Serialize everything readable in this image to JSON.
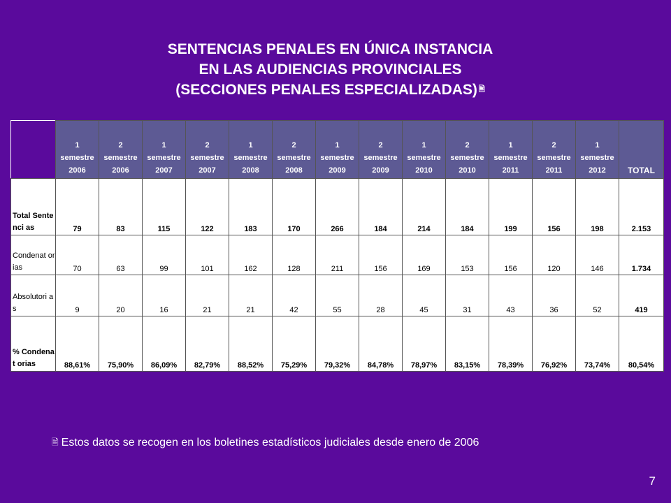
{
  "title": {
    "line1": "SENTENCIAS PENALES EN ÚNICA INSTANCIA",
    "line2": "EN LAS AUDIENCIAS PROVINCIALES",
    "line3": "(SECCIONES PENALES ESPECIALIZADAS)",
    "icon": "document-icon"
  },
  "table": {
    "headers": [
      {
        "num": "1",
        "word": "semestre",
        "year": "2006"
      },
      {
        "num": "2",
        "word": "semestre",
        "year": "2006"
      },
      {
        "num": "1",
        "word": "semestre",
        "year": "2007"
      },
      {
        "num": "2",
        "word": "semestre",
        "year": "2007"
      },
      {
        "num": "1",
        "word": "semestre",
        "year": "2008"
      },
      {
        "num": "2",
        "word": "semestre",
        "year": "2008"
      },
      {
        "num": "1",
        "word": "semestre",
        "year": "2009"
      },
      {
        "num": "2",
        "word": "semestre",
        "year": "2009"
      },
      {
        "num": "1",
        "word": "semestre",
        "year": "2010"
      },
      {
        "num": "2",
        "word": "semestre",
        "year": "2010"
      },
      {
        "num": "1",
        "word": "semestre",
        "year": "2011"
      },
      {
        "num": "2",
        "word": "semestre",
        "year": "2011"
      },
      {
        "num": "1",
        "word": "semestre",
        "year": "2012"
      }
    ],
    "total_header": "TOTAL",
    "rows": [
      {
        "label": "Total Sentenci as",
        "values": [
          "79",
          "83",
          "115",
          "122",
          "183",
          "170",
          "266",
          "184",
          "214",
          "184",
          "199",
          "156",
          "198"
        ],
        "total": "2.153"
      },
      {
        "label": "Condenat orias",
        "values": [
          "70",
          "63",
          "99",
          "101",
          "162",
          "128",
          "211",
          "156",
          "169",
          "153",
          "156",
          "120",
          "146"
        ],
        "total": "1.734"
      },
      {
        "label": "Absolutori as",
        "values": [
          "9",
          "20",
          "16",
          "21",
          "21",
          "42",
          "55",
          "28",
          "45",
          "31",
          "43",
          "36",
          "52"
        ],
        "total": "419"
      },
      {
        "label": "% Condenat orias",
        "values": [
          "88,61%",
          "75,90%",
          "86,09%",
          "82,79%",
          "88,52%",
          "75,29%",
          "79,32%",
          "84,78%",
          "78,97%",
          "83,15%",
          "78,39%",
          "76,92%",
          "73,74%"
        ],
        "total": "80,54%"
      }
    ]
  },
  "footnote": {
    "text": "Estos datos se recogen en los boletines estadísticos judiciales desde enero de 2006",
    "icon": "document-icon"
  },
  "page_number": "7",
  "colors": {
    "background": "#5a0a9c",
    "header_fill": "#5d5a94",
    "table_fill": "#ffffff"
  }
}
